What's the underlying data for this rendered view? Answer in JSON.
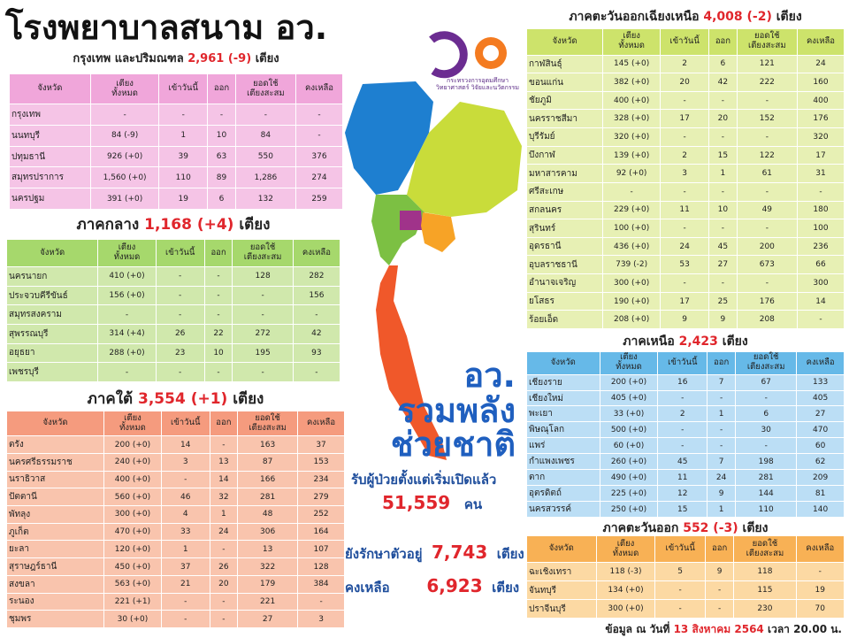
{
  "title": "โรงพยาบาลสนาม อว.",
  "logo": {
    "line1": "กระทรวงการอุดมศึกษา",
    "line2": "วิทยาศาสตร์ วิจัยและนวัตกรรม"
  },
  "columns": [
    "จังหวัด",
    "เตียง\nทั้งหมด",
    "เข้าวันนี้",
    "ออก",
    "ยอดใช้\nเตียงสะสม",
    "คงเหลือ"
  ],
  "sections": [
    {
      "name": "กรุงเทพ และปริมณฑล",
      "beds": "2,961 (-9)",
      "unit": "เตียง",
      "rows": [
        [
          "กรุงเทพ",
          "-",
          "-",
          "-",
          "-",
          "-"
        ],
        [
          "นนทบุรี",
          "84 (-9)",
          "1",
          "10",
          "84",
          "-"
        ],
        [
          "ปทุมธานี",
          "926 (+0)",
          "39",
          "63",
          "550",
          "376"
        ],
        [
          "สมุทรปราการ",
          "1,560 (+0)",
          "110",
          "89",
          "1,286",
          "274"
        ],
        [
          "นครปฐม",
          "391 (+0)",
          "19",
          "6",
          "132",
          "259"
        ]
      ]
    },
    {
      "name": "ภาคกลาง",
      "beds": "1,168 (+4)",
      "unit": "เตียง",
      "rows": [
        [
          "นครนายก",
          "410 (+0)",
          "-",
          "-",
          "128",
          "282"
        ],
        [
          "ประจวบคีรีขันธ์",
          "156 (+0)",
          "-",
          "-",
          "-",
          "156"
        ],
        [
          "สมุทรสงคราม",
          "-",
          "-",
          "-",
          "-",
          "-"
        ],
        [
          "สุพรรณบุรี",
          "314 (+4)",
          "26",
          "22",
          "272",
          "42"
        ],
        [
          "อยุธยา",
          "288 (+0)",
          "23",
          "10",
          "195",
          "93"
        ],
        [
          "เพชรบุรี",
          "-",
          "-",
          "-",
          "-",
          "-"
        ]
      ]
    },
    {
      "name": "ภาคใต้",
      "beds": "3,554 (+1)",
      "unit": "เตียง",
      "rows": [
        [
          "ตรัง",
          "200 (+0)",
          "14",
          "-",
          "163",
          "37"
        ],
        [
          "นครศรีธรรมราช",
          "240 (+0)",
          "3",
          "13",
          "87",
          "153"
        ],
        [
          "นราธิวาส",
          "400 (+0)",
          "-",
          "14",
          "166",
          "234"
        ],
        [
          "ปัตตานี",
          "560 (+0)",
          "46",
          "32",
          "281",
          "279"
        ],
        [
          "พัทลุง",
          "300 (+0)",
          "4",
          "1",
          "48",
          "252"
        ],
        [
          "ภูเก็ต",
          "470 (+0)",
          "33",
          "24",
          "306",
          "164"
        ],
        [
          "ยะลา",
          "120 (+0)",
          "1",
          "-",
          "13",
          "107"
        ],
        [
          "สุราษฎร์ธานี",
          "450 (+0)",
          "37",
          "26",
          "322",
          "128"
        ],
        [
          "สงขลา",
          "563 (+0)",
          "21",
          "20",
          "179",
          "384"
        ],
        [
          "ระนอง",
          "221 (+1)",
          "-",
          "-",
          "221",
          "-"
        ],
        [
          "ชุมพร",
          "30 (+0)",
          "-",
          "-",
          "27",
          "3"
        ]
      ]
    },
    {
      "name": "ภาคตะวันออกเฉียงเหนือ",
      "beds": "4,008 (-2)",
      "unit": "เตียง",
      "rows": [
        [
          "กาฬสินธุ์",
          "145 (+0)",
          "2",
          "6",
          "121",
          "24"
        ],
        [
          "ขอนแก่น",
          "382 (+0)",
          "20",
          "42",
          "222",
          "160"
        ],
        [
          "ชัยภูมิ",
          "400 (+0)",
          "-",
          "-",
          "-",
          "400"
        ],
        [
          "นครราชสีมา",
          "328 (+0)",
          "17",
          "20",
          "152",
          "176"
        ],
        [
          "บุรีรัมย์",
          "320 (+0)",
          "-",
          "-",
          "-",
          "320"
        ],
        [
          "บึงกาฬ",
          "139 (+0)",
          "2",
          "15",
          "122",
          "17"
        ],
        [
          "มหาสารคาม",
          "92 (+0)",
          "3",
          "1",
          "61",
          "31"
        ],
        [
          "ศรีสะเกษ",
          "-",
          "-",
          "-",
          "-",
          "-"
        ],
        [
          "สกลนคร",
          "229 (+0)",
          "11",
          "10",
          "49",
          "180"
        ],
        [
          "สุรินทร์",
          "100 (+0)",
          "-",
          "-",
          "-",
          "100"
        ],
        [
          "อุดรธานี",
          "436 (+0)",
          "24",
          "45",
          "200",
          "236"
        ],
        [
          "อุบลราชธานี",
          "739 (-2)",
          "53",
          "27",
          "673",
          "66"
        ],
        [
          "อำนาจเจริญ",
          "300 (+0)",
          "-",
          "-",
          "-",
          "300"
        ],
        [
          "ยโสธร",
          "190 (+0)",
          "17",
          "25",
          "176",
          "14"
        ],
        [
          "ร้อยเอ็ด",
          "208 (+0)",
          "9",
          "9",
          "208",
          "-"
        ]
      ]
    },
    {
      "name": "ภาคเหนือ",
      "beds": "2,423",
      "unit": "เตียง",
      "rows": [
        [
          "เชียงราย",
          "200 (+0)",
          "16",
          "7",
          "67",
          "133"
        ],
        [
          "เชียงใหม่",
          "405 (+0)",
          "-",
          "-",
          "-",
          "405"
        ],
        [
          "พะเยา",
          "33 (+0)",
          "2",
          "1",
          "6",
          "27"
        ],
        [
          "พิษณุโลก",
          "500 (+0)",
          "-",
          "-",
          "30",
          "470"
        ],
        [
          "แพร่",
          "60 (+0)",
          "-",
          "-",
          "-",
          "60"
        ],
        [
          "กำแพงเพชร",
          "260 (+0)",
          "45",
          "7",
          "198",
          "62"
        ],
        [
          "ตาก",
          "490 (+0)",
          "11",
          "24",
          "281",
          "209"
        ],
        [
          "อุตรดิตถ์",
          "225 (+0)",
          "12",
          "9",
          "144",
          "81"
        ],
        [
          "นครสวรรค์",
          "250 (+0)",
          "15",
          "1",
          "110",
          "140"
        ]
      ]
    },
    {
      "name": "ภาคตะวันออก",
      "beds": "552 (-3)",
      "unit": "เตียง",
      "rows": [
        [
          "ฉะเชิงเทรา",
          "118 (-3)",
          "5",
          "9",
          "118",
          "-"
        ],
        [
          "จันทบุรี",
          "134 (+0)",
          "-",
          "-",
          "115",
          "19"
        ],
        [
          "ปราจีนบุรี",
          "300 (+0)",
          "-",
          "-",
          "230",
          "70"
        ]
      ]
    }
  ],
  "slogan": [
    "อว.",
    "รวมพลัง",
    "ช่วยชาติ"
  ],
  "summary": {
    "admitted_label": "รับผู้ป่วยตั้งแต่เริ่มเปิดแล้ว",
    "admitted": "51,559",
    "admitted_unit": "คน",
    "treating_label": "ยังรักษาตัวอยู่",
    "treating": "7,743",
    "treating_unit": "เตียง",
    "remaining_label": "คงเหลือ",
    "remaining": "6,923",
    "remaining_unit": "เตียง"
  },
  "footer": {
    "label": "ข้อมูล ณ วันที่",
    "date": "13 สิงหาคม 2564",
    "time": "เวลา 20.00 น."
  }
}
